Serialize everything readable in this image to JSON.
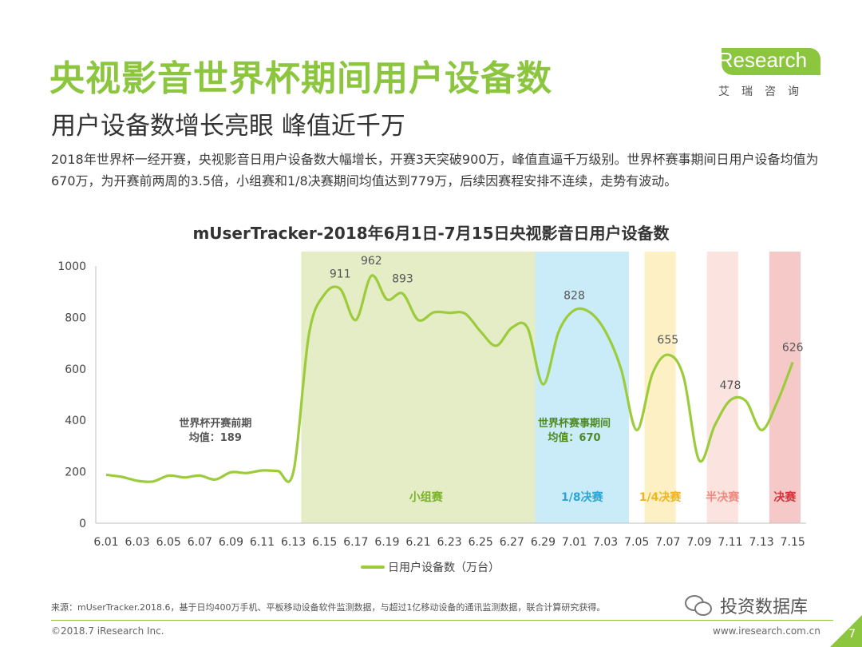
{
  "slide": {
    "title": "央视影音世界杯期间用户设备数",
    "subtitle": "用户设备数增长亮眼 峰值近千万",
    "description": "2018年世界杯一经开赛，央视影音日用户设备数大幅增长，开赛3天突破900万，峰值直逼千万级别。世界杯赛事期间日用户设备均值为670万，为开赛前两周的3.5倍，小组赛和1/8决赛期间均值达到779万，后续因赛程安排不连续，走势有波动。",
    "logo": {
      "brand": "iResearch",
      "cn": "艾瑞咨询"
    },
    "source": "来源：mUserTracker.2018.6，基于日均400万手机、平板移动设备软件监测数据，与超过1亿移动设备的通讯监测数据，联合计算研究获得。",
    "copyright": "©2018.7 iResearch Inc.",
    "website": "www.iresearch.com.cn",
    "page_number": "7",
    "watermark": "投资数据库",
    "colors": {
      "accent": "#8cc63f",
      "line": "#9ccc3c"
    }
  },
  "chart_data": {
    "type": "line",
    "title": "mUserTracker-2018年6月1日-7月15日央视影音日用户设备数",
    "legend": "日用户设备数（万台）",
    "legend_position": "bottom",
    "ylim": [
      0,
      1000
    ],
    "yticks": [
      "0",
      "200",
      "400",
      "600",
      "800",
      "1000"
    ],
    "xticks": [
      "6.01",
      "6.03",
      "6.05",
      "6.07",
      "6.09",
      "6.11",
      "6.13",
      "6.15",
      "6.17",
      "6.19",
      "6.21",
      "6.23",
      "6.25",
      "6.27",
      "6.29",
      "7.01",
      "7.03",
      "7.05",
      "7.07",
      "7.09",
      "7.11",
      "7.13",
      "7.15"
    ],
    "x": [
      "6.01",
      "6.02",
      "6.03",
      "6.04",
      "6.05",
      "6.06",
      "6.07",
      "6.08",
      "6.09",
      "6.10",
      "6.11",
      "6.12",
      "6.13",
      "6.14",
      "6.15",
      "6.16",
      "6.17",
      "6.18",
      "6.19",
      "6.20",
      "6.21",
      "6.22",
      "6.23",
      "6.24",
      "6.25",
      "6.26",
      "6.27",
      "6.28",
      "6.29",
      "6.30",
      "7.01",
      "7.02",
      "7.03",
      "7.04",
      "7.05",
      "7.06",
      "7.07",
      "7.08",
      "7.09",
      "7.10",
      "7.11",
      "7.12",
      "7.13",
      "7.14",
      "7.15"
    ],
    "series": [
      {
        "name": "日用户设备数（万台）",
        "values": [
          188,
          180,
          165,
          162,
          185,
          178,
          185,
          170,
          198,
          195,
          205,
          203,
          200,
          735,
          890,
          911,
          790,
          962,
          870,
          893,
          790,
          820,
          818,
          815,
          745,
          690,
          760,
          760,
          540,
          745,
          828,
          820,
          745,
          600,
          362,
          580,
          655,
          570,
          245,
          380,
          478,
          475,
          362,
          470,
          626
        ]
      }
    ],
    "data_labels": [
      {
        "x": "6.16",
        "text": "911"
      },
      {
        "x": "6.18",
        "text": "962"
      },
      {
        "x": "6.20",
        "text": "893"
      },
      {
        "x": "7.01",
        "text": "828"
      },
      {
        "x": "7.07",
        "text": "655"
      },
      {
        "x": "7.11",
        "text": "478"
      },
      {
        "x": "7.15",
        "text": "626"
      }
    ],
    "phases": [
      {
        "label": "小组赛",
        "from": "6.14",
        "to": "6.29",
        "color": "#e4edc6",
        "text_color": "#7bb326"
      },
      {
        "label": "1/8决赛",
        "from": "6.29",
        "to": "7.04",
        "color": "#c9ecf8",
        "text_color": "#2aa6d8"
      },
      {
        "label": "1/4决赛",
        "from": "7.06",
        "to": "7.07",
        "color": "#fdf0c4",
        "text_color": "#f2b51d"
      },
      {
        "label": "半决赛",
        "from": "7.10",
        "to": "7.11",
        "color": "#fbe3df",
        "text_color": "#f08a80"
      },
      {
        "label": "决赛",
        "from": "7.14",
        "to": "7.15",
        "color": "#f6c9c9",
        "text_color": "#d9303a"
      }
    ],
    "annotations": [
      {
        "lines": [
          "世界杯开赛前期",
          "均值：189"
        ],
        "x": "6.08",
        "y": 400,
        "color": "#555555"
      },
      {
        "lines": [
          "世界杯赛事期间",
          "均值：670"
        ],
        "x": "7.01",
        "y": 400,
        "color": "#4f8a1f"
      }
    ],
    "grid": false
  }
}
